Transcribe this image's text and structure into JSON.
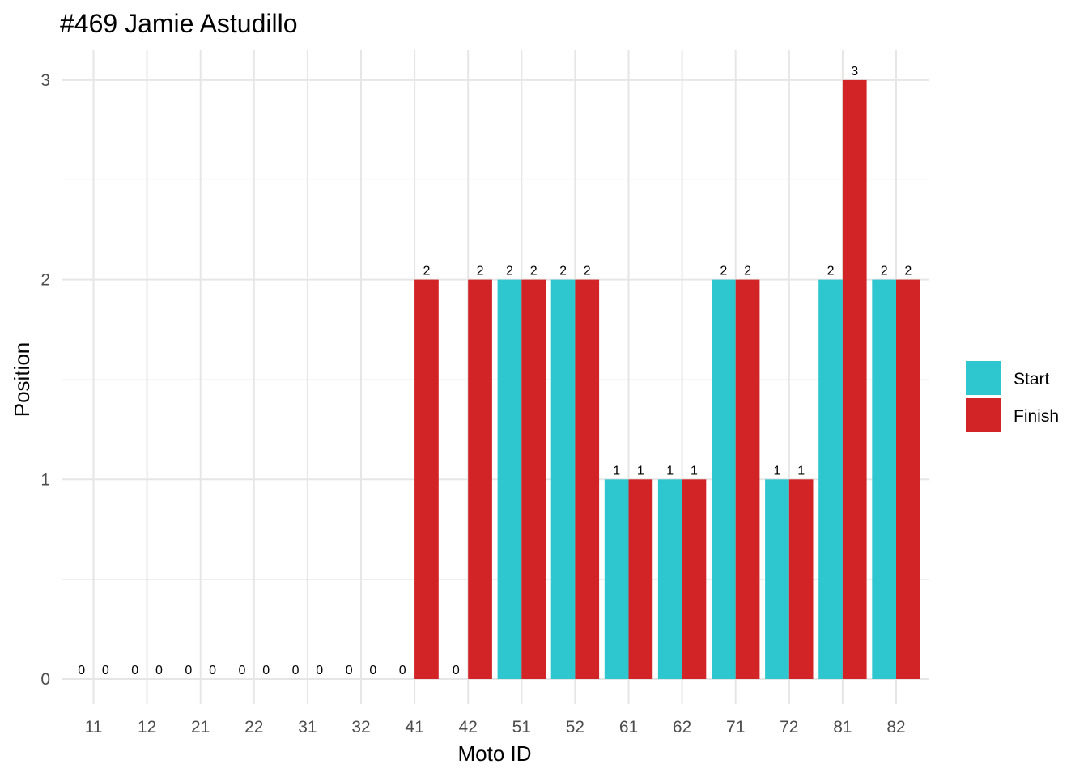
{
  "chart_data": {
    "type": "bar",
    "title": "#469 Jamie Astudillo",
    "xlabel": "Moto ID",
    "ylabel": "Position",
    "categories": [
      "11",
      "12",
      "21",
      "22",
      "31",
      "32",
      "41",
      "42",
      "51",
      "52",
      "61",
      "62",
      "71",
      "72",
      "81",
      "82"
    ],
    "series": [
      {
        "name": "Start",
        "color": "#2ec7d0",
        "values": [
          0,
          0,
          0,
          0,
          0,
          0,
          0,
          0,
          2,
          2,
          1,
          1,
          2,
          1,
          2,
          2
        ]
      },
      {
        "name": "Finish",
        "color": "#d22426",
        "values": [
          0,
          0,
          0,
          0,
          0,
          0,
          2,
          2,
          2,
          2,
          1,
          1,
          2,
          1,
          3,
          2
        ]
      }
    ],
    "ylim": [
      0,
      3
    ],
    "yticks": [
      0,
      1,
      2,
      3
    ],
    "grid": true,
    "legend_position": "right"
  }
}
